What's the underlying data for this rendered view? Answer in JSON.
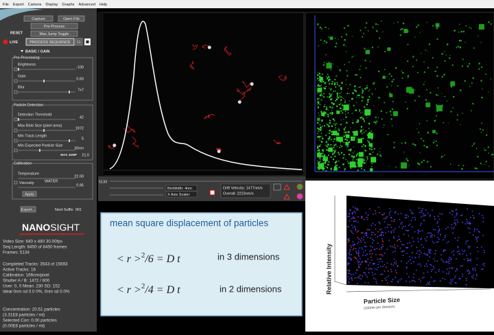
{
  "menu": [
    "File",
    "Export",
    "Camera",
    "Display",
    "Graphs",
    "Advanced",
    "Help"
  ],
  "controls": {
    "capture": "Capture",
    "open_file": "Open File",
    "pre_process": "Pre-Process",
    "reset": "RESET",
    "max_jump_toggle": "Max Jump Toggle",
    "live": "LIVE",
    "process_sequence": "PROCESS SEQUENCE",
    "sequence_number": "11",
    "basic_gain": "BASIC / GAIN"
  },
  "pre_processing": {
    "title": "Pre-Processing",
    "rows": [
      [
        "Brightness",
        "-100"
      ],
      [
        "Gain",
        "0.83"
      ],
      [
        "Blur",
        "7x7"
      ]
    ]
  },
  "particle_detection": {
    "title": "Particle Detection",
    "rows": [
      [
        "Detection Threshold",
        "42"
      ],
      [
        "Max Blob Size (pixel area)",
        "1972"
      ],
      [
        "Min Track Length",
        "5"
      ],
      [
        "Min Expected Particle Size",
        "30nm"
      ]
    ],
    "max_jump_label": "MAX JUMP",
    "max_jump_value": "21.0"
  },
  "calibration": {
    "title": "Calibration",
    "temperature": [
      "Temperature",
      "22.00"
    ],
    "viscosity": [
      "Viscosity",
      "WATER",
      "0.95"
    ],
    "apply": "Apply"
  },
  "export": {
    "button": "Export...",
    "suffix_label": "Next Suffix",
    "suffix_value": "001"
  },
  "logo": {
    "nano": "NANO",
    "sight": "SIGHT"
  },
  "stats": [
    "Video Size: 640 x 480   30.00fps",
    "Seq Length: 8450 of 8450 frames",
    "Frames: 5134",
    "Completed Tracks: 3543 of 15693",
    "Active Tracks: 16",
    "Calibration: 166nm/pixel",
    "Shutter A / B: 1472 / 600",
    "User: 0, 0 Mean: 230 SD: 152",
    "Ideal 0nm sd 0.0 0%, 0nm sd 0.0%",
    "Concentration: 20.51 particles",
    "(3.31E8 particles / ml)",
    "Selected Con: 0.00 particles",
    "(0.00E8 particles / ml)"
  ],
  "video_controls": {
    "frame": "5133",
    "bin_width": "BinWidth: 4nm",
    "x_axis_scaler": "X Axis Scaler",
    "drift": "Drift Velocity: 1477nm/s",
    "overall": "Overall: 2223nm/s"
  },
  "callout": {
    "title": "mean square displacement of particles",
    "formula_3d": {
      "lhs": "< r >",
      "exponent": "2",
      "rhs": "/6  = D t",
      "note": "in 3 dimensions"
    },
    "formula_2d": {
      "lhs": "< r >",
      "exponent": "2",
      "rhs": "/4  = D t",
      "note": "in 2 dimensions"
    }
  },
  "plot_3d": {
    "y_label": "Relative Intensity",
    "x_label": "Particle Size",
    "x_sublabel": "(100nm per division)"
  }
}
